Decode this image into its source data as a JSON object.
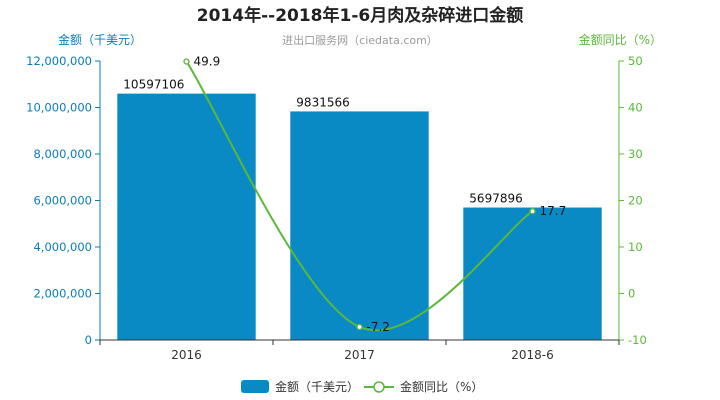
{
  "chart_data": {
    "type": "bar",
    "title": "2014年--2018年1-6月肉及杂碎进口金额",
    "subtitle": "进出口服务网（ciedata.com）",
    "categories": [
      "2016",
      "2017",
      "2018-6"
    ],
    "series": [
      {
        "name": "金额（千美元）",
        "type": "bar",
        "axis": "left",
        "values": [
          10597106,
          9831566,
          5697896
        ],
        "labels": [
          "10597106",
          "9831566",
          "5697896"
        ],
        "color": "#0a8ac5"
      },
      {
        "name": "金额同比（%）",
        "type": "line",
        "axis": "right",
        "values": [
          49.9,
          -7.2,
          17.7
        ],
        "labels": [
          "49.9",
          "-7.2",
          "17.7"
        ],
        "color": "#5cb83a"
      }
    ],
    "ylabel": "金额（千美元）",
    "y2label": "金额同比（%）",
    "ylim": [
      0,
      12000000
    ],
    "y2lim": [
      -10,
      50
    ],
    "yticks": [
      "0",
      "2,000,000",
      "4,000,000",
      "6,000,000",
      "8,000,000",
      "10,000,000",
      "12,000,000"
    ],
    "y2ticks": [
      "-10",
      "0",
      "10",
      "20",
      "30",
      "40",
      "50"
    ],
    "legend": "bottom-center",
    "grid": false,
    "axis_color_left": "#0a7db8",
    "axis_color_right": "#5cb83a"
  }
}
